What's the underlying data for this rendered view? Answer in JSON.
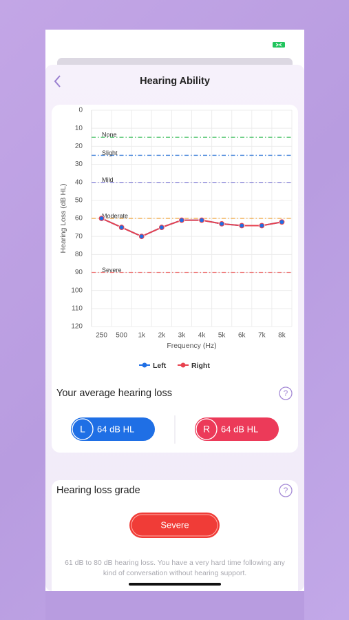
{
  "header": {
    "title": "Hearing Ability"
  },
  "chart_data": {
    "type": "line",
    "y_label": "Hearing Loss (dB HL)",
    "x_label": "Frequency (Hz)",
    "categories": [
      "250",
      "500",
      "1k",
      "2k",
      "3k",
      "4k",
      "5k",
      "6k",
      "7k",
      "8k"
    ],
    "series": [
      {
        "name": "Left",
        "color": "#1f6fe5",
        "values": [
          60,
          65,
          70,
          65,
          61,
          61,
          63,
          64,
          64,
          62
        ]
      },
      {
        "name": "Right",
        "color": "#e8424f",
        "values": [
          60,
          65,
          70,
          65,
          61,
          61,
          63,
          64,
          64,
          62
        ]
      }
    ],
    "ylim": [
      0,
      120
    ],
    "yticks": [
      0,
      10,
      20,
      30,
      40,
      50,
      60,
      70,
      80,
      90,
      100,
      110,
      120
    ],
    "y_inverted": true,
    "grid": true,
    "reference_lines": [
      {
        "label": "None",
        "value": 15,
        "color": "#4cc46a"
      },
      {
        "label": "Slight",
        "value": 25,
        "color": "#3b7fd9"
      },
      {
        "label": "Mild",
        "value": 40,
        "color": "#8a86d8"
      },
      {
        "label": "Moderate",
        "value": 60,
        "color": "#f0a43a"
      },
      {
        "label": "Severe",
        "value": 90,
        "color": "#ef7a7a"
      }
    ]
  },
  "average": {
    "title": "Your average hearing loss",
    "help": "?",
    "left": {
      "badge": "L",
      "text": "64 dB HL"
    },
    "right": {
      "badge": "R",
      "text": "64 dB HL"
    }
  },
  "grade": {
    "title": "Hearing loss grade",
    "help": "?",
    "button": "Severe",
    "description": "61 dB to 80 dB hearing loss. You have a very hard time following any kind of conversation without hearing support."
  }
}
